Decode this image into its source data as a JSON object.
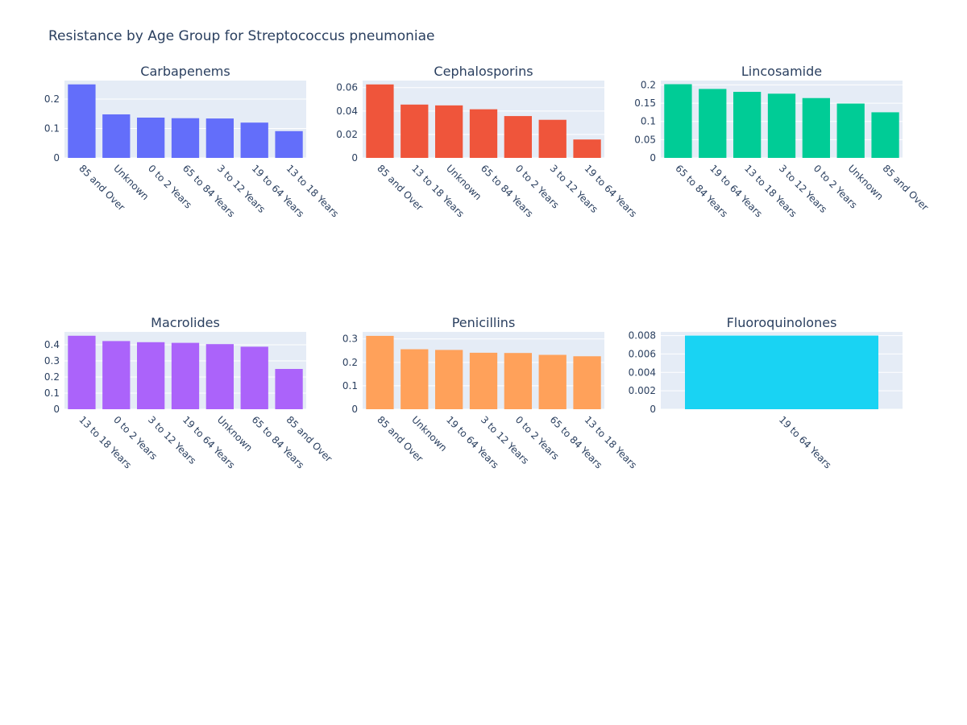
{
  "page_title": "Resistance by Age Group for Streptococcus pneumoniae",
  "chart_data": [
    {
      "type": "bar",
      "title": "Carbapenems",
      "color": "#636efa",
      "categories": [
        "85 and Over",
        "Unknown",
        "0 to 2 Years",
        "65 to 84 Years",
        "3 to 12 Years",
        "19 to 64 Years",
        "13 to 18 Years"
      ],
      "values": [
        0.25,
        0.148,
        0.137,
        0.135,
        0.134,
        0.12,
        0.091
      ],
      "ylim": [
        0,
        0.263
      ],
      "yticks": [
        0,
        0.1,
        0.2
      ],
      "ytick_labels": [
        "0",
        "0.1",
        "0.2"
      ],
      "grid": true
    },
    {
      "type": "bar",
      "title": "Cephalosporins",
      "color": "#ef553b",
      "categories": [
        "85 and Over",
        "13 to 18 Years",
        "Unknown",
        "65 to 84 Years",
        "0 to 2 Years",
        "3 to 12 Years",
        "19 to 64 Years"
      ],
      "values": [
        0.0627,
        0.0455,
        0.0448,
        0.0415,
        0.0357,
        0.0325,
        0.0157
      ],
      "ylim": [
        0,
        0.066
      ],
      "yticks": [
        0,
        0.02,
        0.04,
        0.06
      ],
      "ytick_labels": [
        "0",
        "0.02",
        "0.04",
        "0.06"
      ],
      "grid": true
    },
    {
      "type": "bar",
      "title": "Lincosamide",
      "color": "#00cc96",
      "categories": [
        "65 to 84 Years",
        "19 to 64 Years",
        "13 to 18 Years",
        "3 to 12 Years",
        "0 to 2 Years",
        "Unknown",
        "85 and Over"
      ],
      "values": [
        0.202,
        0.189,
        0.181,
        0.176,
        0.164,
        0.149,
        0.125
      ],
      "ylim": [
        0,
        0.212
      ],
      "yticks": [
        0,
        0.05,
        0.1,
        0.15,
        0.2
      ],
      "ytick_labels": [
        "0",
        "0.05",
        "0.1",
        "0.15",
        "0.2"
      ],
      "grid": true
    },
    {
      "type": "bar",
      "title": "Macrolides",
      "color": "#ab63fa",
      "categories": [
        "13 to 18 Years",
        "0 to 2 Years",
        "3 to 12 Years",
        "19 to 64 Years",
        "Unknown",
        "65 to 84 Years",
        "85 and Over"
      ],
      "values": [
        0.456,
        0.423,
        0.416,
        0.412,
        0.404,
        0.388,
        0.25
      ],
      "ylim": [
        0,
        0.48
      ],
      "yticks": [
        0,
        0.1,
        0.2,
        0.3,
        0.4
      ],
      "ytick_labels": [
        "0",
        "0.1",
        "0.2",
        "0.3",
        "0.4"
      ],
      "grid": true
    },
    {
      "type": "bar",
      "title": "Penicillins",
      "color": "#ffa15a",
      "categories": [
        "85 and Over",
        "Unknown",
        "19 to 64 Years",
        "3 to 12 Years",
        "0 to 2 Years",
        "65 to 84 Years",
        "13 to 18 Years"
      ],
      "values": [
        0.313,
        0.256,
        0.253,
        0.241,
        0.24,
        0.232,
        0.226
      ],
      "ylim": [
        0,
        0.33
      ],
      "yticks": [
        0,
        0.1,
        0.2,
        0.3
      ],
      "ytick_labels": [
        "0",
        "0.1",
        "0.2",
        "0.3"
      ],
      "grid": true
    },
    {
      "type": "bar",
      "title": "Fluoroquinolones",
      "color": "#19d3f3",
      "categories": [
        "19 to 64 Years"
      ],
      "values": [
        0.008
      ],
      "ylim": [
        0,
        0.0084
      ],
      "yticks": [
        0,
        0.002,
        0.004,
        0.006,
        0.008
      ],
      "ytick_labels": [
        "0",
        "0.002",
        "0.004",
        "0.006",
        "0.008"
      ],
      "grid": true
    }
  ]
}
